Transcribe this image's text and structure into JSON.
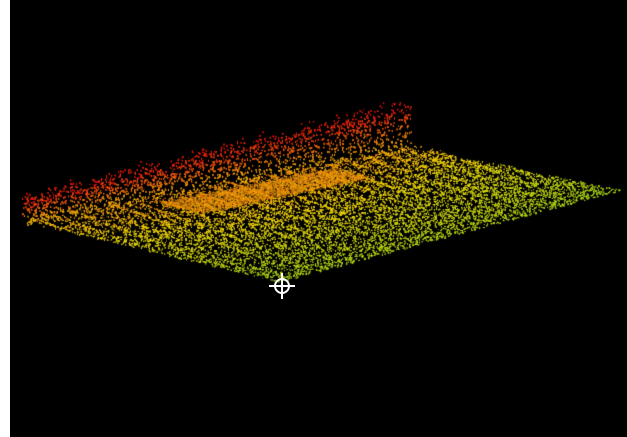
{
  "viewer": {
    "background_color": "#000000",
    "color_ramp": {
      "low": "#7ED321",
      "mid": "#F5D90A",
      "high": "#E01010"
    },
    "pivot_icon": "crosshair-target-icon",
    "cursor_color": "#FFFFFF"
  }
}
